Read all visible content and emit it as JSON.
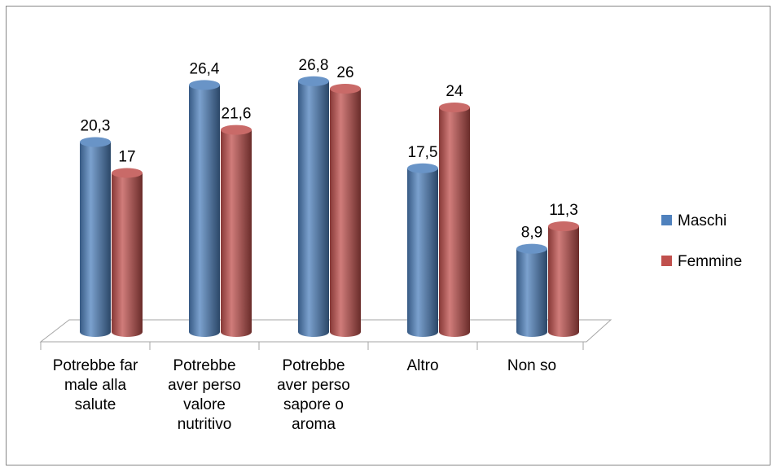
{
  "chart_data": {
    "type": "bar3d",
    "categories": [
      "Potrebbe far male alla salute",
      "Potrebbe aver perso valore nutritivo",
      "Potrebbe aver perso sapore o aroma",
      "Altro",
      "Non so"
    ],
    "series": [
      {
        "name": "Maschi",
        "color": "#4f81bd",
        "values": [
          20.3,
          26.4,
          26.8,
          17.5,
          8.9
        ],
        "value_labels": [
          "20,3",
          "26,4",
          "26,8",
          "17,5",
          "8,9"
        ]
      },
      {
        "name": "Femmine",
        "color": "#c0504d",
        "values": [
          17,
          21.6,
          26,
          24,
          11.3
        ],
        "value_labels": [
          "17",
          "21,6",
          "26",
          "24",
          "11,3"
        ]
      }
    ],
    "legend": "right"
  }
}
